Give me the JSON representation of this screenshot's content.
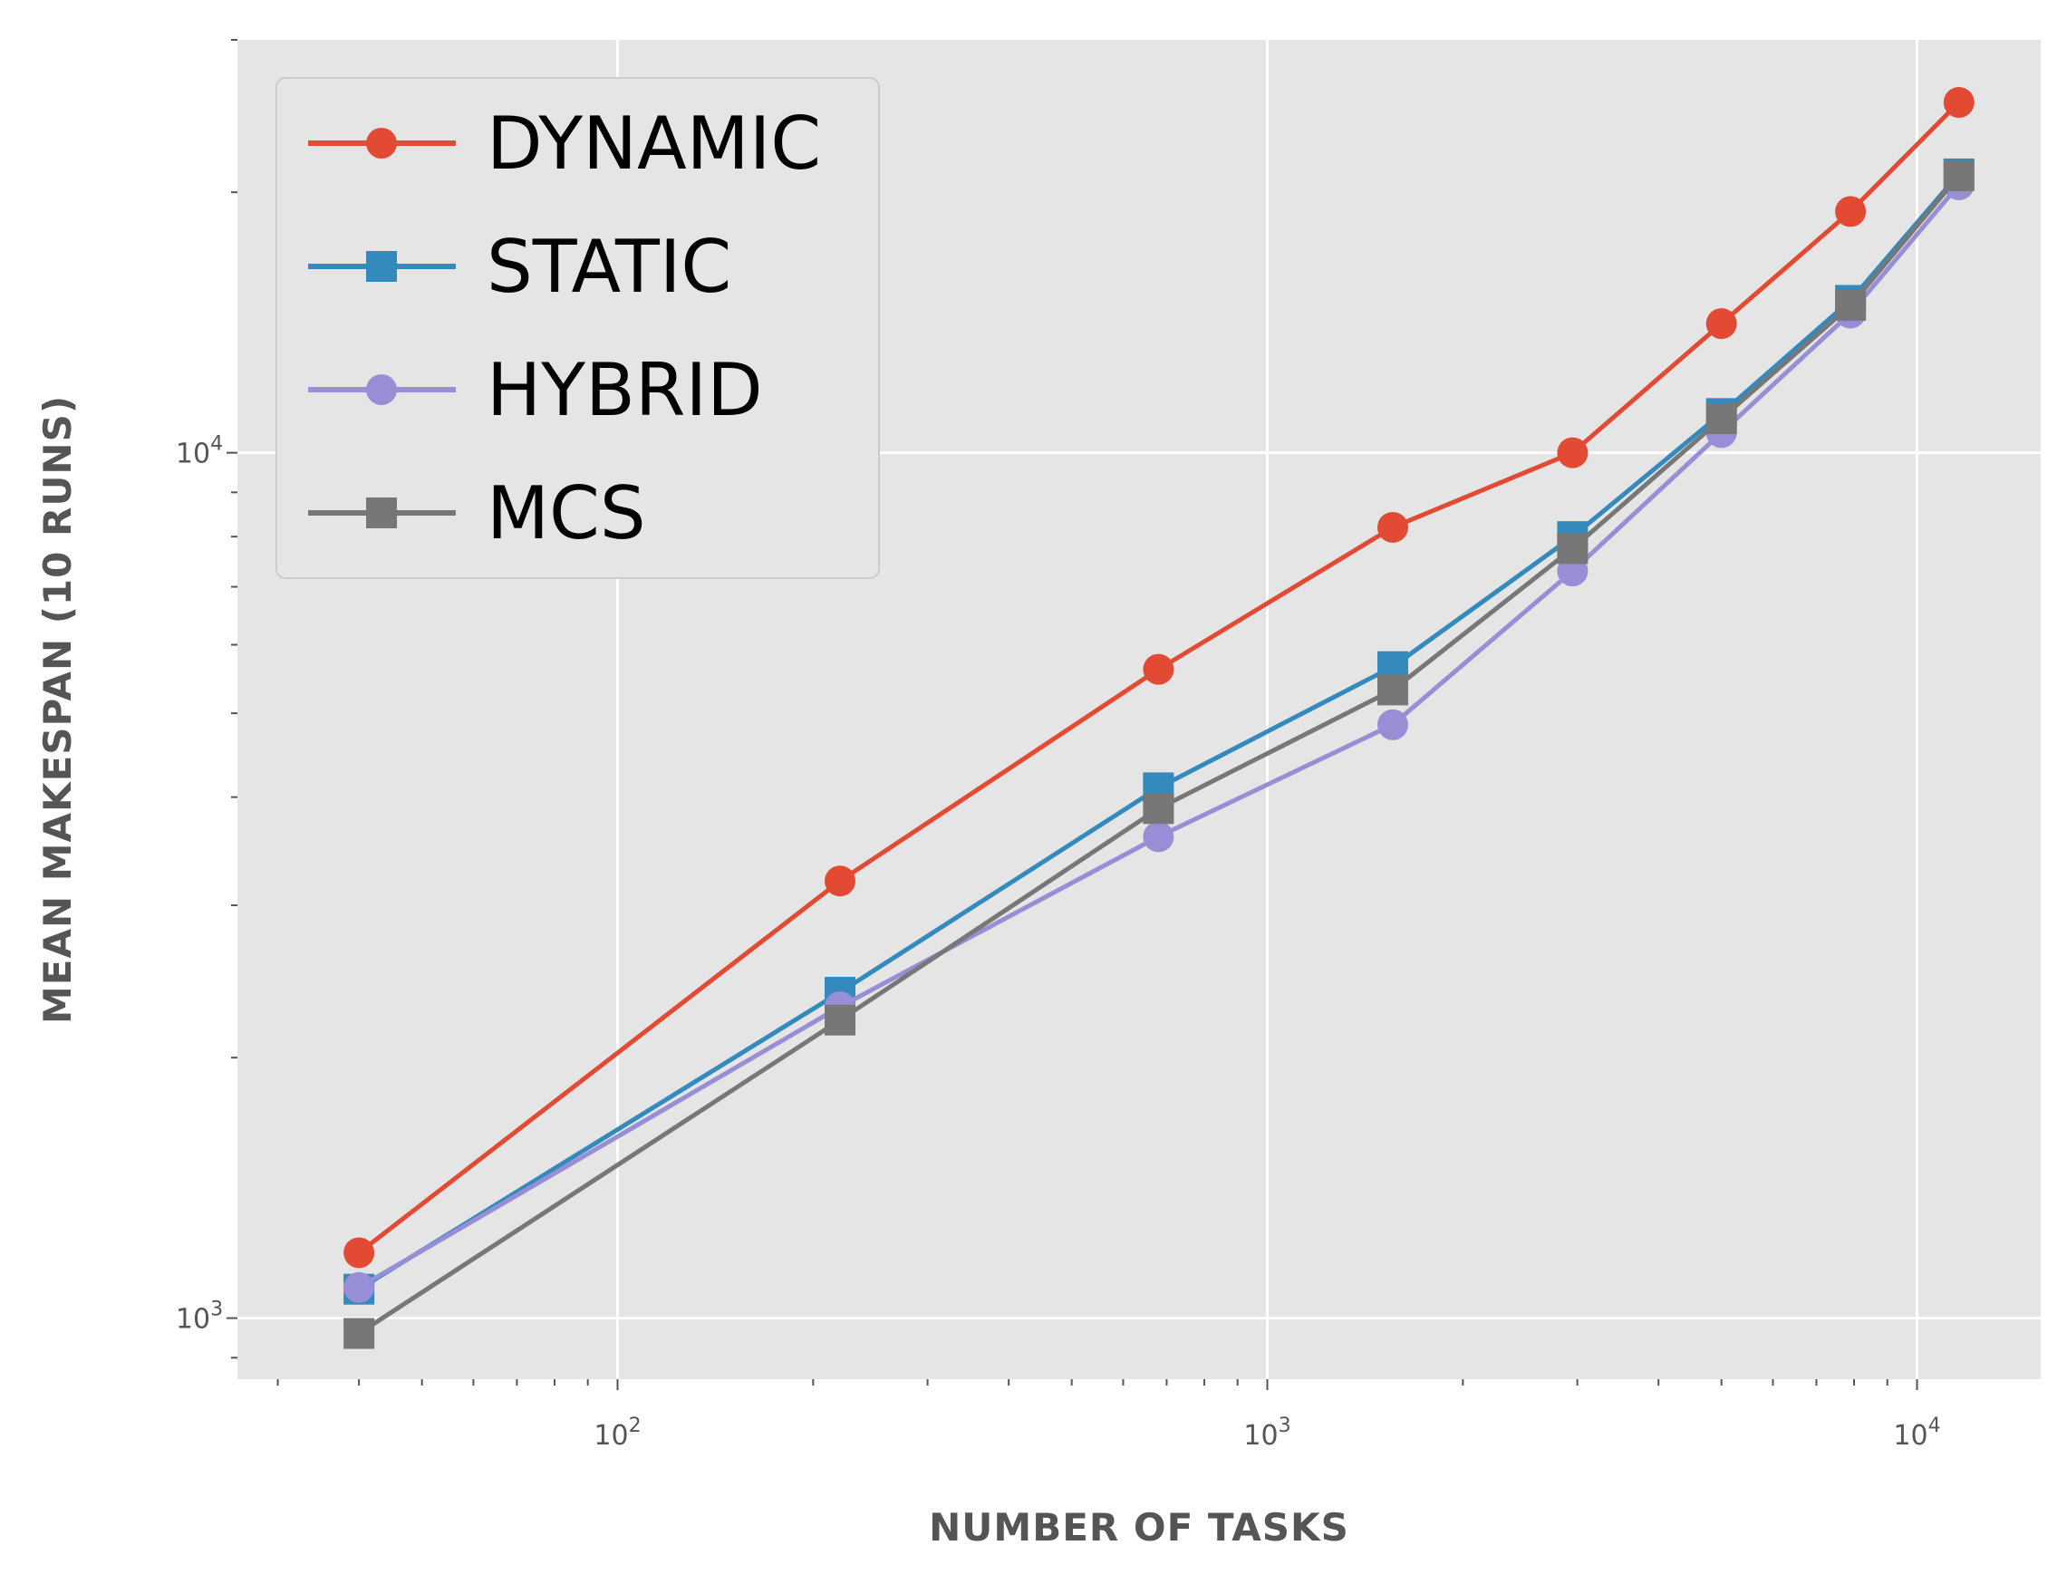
{
  "chart_data": {
    "type": "line",
    "title": "",
    "xlabel": "NUMBER OF TASKS",
    "ylabel": "MEAN MAKESPAN (10 RUNS)",
    "xscale": "log",
    "yscale": "log",
    "xlim": [
      26,
      15500
    ],
    "ylim": [
      850,
      30000
    ],
    "grid": true,
    "legend_position": "top-left",
    "x_tick_labels": [
      {
        "base": "10",
        "exp": "2",
        "value": 100
      },
      {
        "base": "10",
        "exp": "3",
        "value": 1000
      },
      {
        "base": "10",
        "exp": "4",
        "value": 10000
      }
    ],
    "y_tick_labels": [
      {
        "base": "10",
        "exp": "3",
        "value": 1000
      },
      {
        "base": "10",
        "exp": "4",
        "value": 10000
      }
    ],
    "x": [
      40,
      220,
      680,
      1560,
      2950,
      5000,
      7900,
      11600
    ],
    "series": [
      {
        "name": "DYNAMIC",
        "color": "#E24A33",
        "marker": "circle",
        "values": [
          1190,
          3200,
          5620,
          8200,
          10000,
          14100,
          19000,
          25400
        ]
      },
      {
        "name": "STATIC",
        "color": "#348ABD",
        "marker": "square",
        "values": [
          1080,
          2380,
          4100,
          5660,
          8000,
          11100,
          15000,
          21000
        ]
      },
      {
        "name": "HYBRID",
        "color": "#988ED5",
        "marker": "circle",
        "values": [
          1085,
          2290,
          3600,
          4850,
          7300,
          10550,
          14500,
          20400
        ]
      },
      {
        "name": "MCS",
        "color": "#777777",
        "marker": "square",
        "values": [
          960,
          2210,
          3880,
          5320,
          7750,
          10950,
          14800,
          20900
        ]
      }
    ]
  }
}
